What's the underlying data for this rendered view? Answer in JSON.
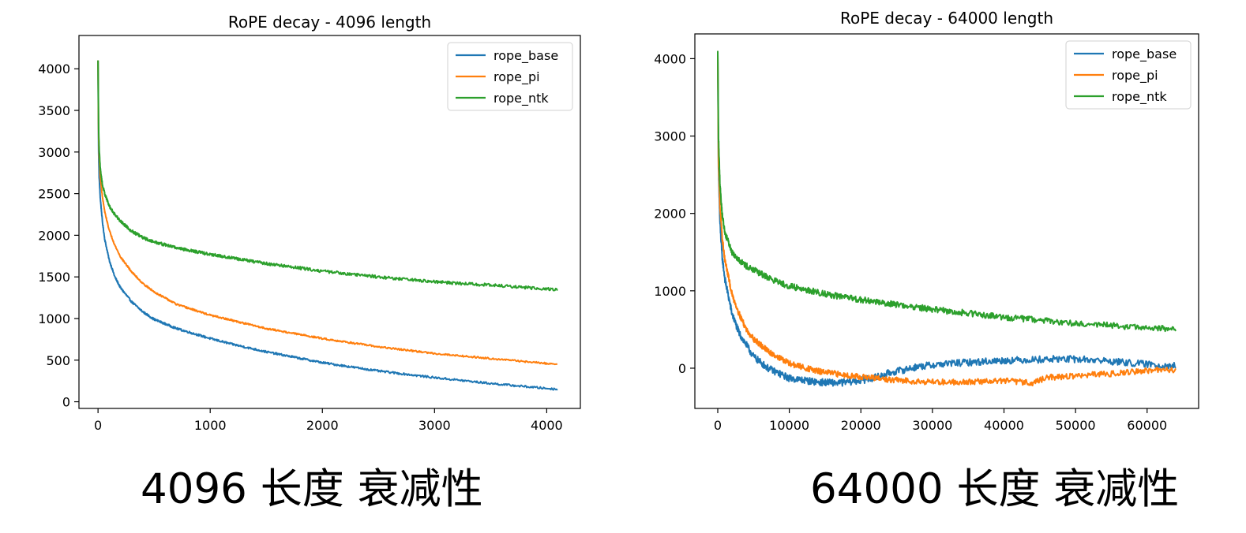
{
  "captions": [
    "4096 长度 衰减性",
    "64000 长度 衰减性"
  ],
  "chart_data": [
    {
      "type": "line",
      "title": "RoPE decay - 4096 length",
      "xlabel": "",
      "ylabel": "",
      "xlim": [
        -170,
        4300
      ],
      "ylim": [
        -80,
        4400
      ],
      "xticks": [
        0,
        1000,
        2000,
        3000,
        4000
      ],
      "yticks": [
        0,
        500,
        1000,
        1500,
        2000,
        2500,
        3000,
        3500,
        4000
      ],
      "grid": false,
      "legend_position": "top-right",
      "series": [
        {
          "name": "rope_base",
          "color": "#1f77b4",
          "x": [
            0,
            5,
            10,
            20,
            40,
            60,
            100,
            150,
            200,
            300,
            400,
            500,
            700,
            1000,
            1200,
            1500,
            2000,
            2500,
            3000,
            3500,
            4000,
            4095
          ],
          "y": [
            4100,
            3000,
            2700,
            2450,
            2150,
            1950,
            1700,
            1500,
            1370,
            1200,
            1080,
            990,
            880,
            760,
            690,
            600,
            470,
            370,
            290,
            220,
            160,
            150
          ],
          "noise": 12
        },
        {
          "name": "rope_pi",
          "color": "#ff7f0e",
          "x": [
            0,
            5,
            10,
            20,
            40,
            60,
            100,
            150,
            200,
            300,
            400,
            500,
            700,
            1000,
            1500,
            2000,
            2500,
            3000,
            3500,
            4000,
            4095
          ],
          "y": [
            4100,
            3200,
            2950,
            2700,
            2450,
            2280,
            2060,
            1880,
            1740,
            1560,
            1420,
            1320,
            1170,
            1040,
            880,
            760,
            660,
            580,
            520,
            460,
            450
          ],
          "noise": 10
        },
        {
          "name": "rope_ntk",
          "color": "#2ca02c",
          "x": [
            0,
            5,
            10,
            20,
            40,
            60,
            100,
            150,
            200,
            300,
            400,
            500,
            700,
            1000,
            1500,
            2000,
            2500,
            3000,
            3500,
            4000,
            4095
          ],
          "y": [
            4100,
            3300,
            3050,
            2800,
            2600,
            2500,
            2350,
            2250,
            2170,
            2050,
            1970,
            1920,
            1850,
            1770,
            1660,
            1570,
            1500,
            1440,
            1400,
            1355,
            1350
          ],
          "noise": 18
        }
      ]
    },
    {
      "type": "line",
      "title": "RoPE decay - 64000 length",
      "xlabel": "",
      "ylabel": "",
      "xlim": [
        -3200,
        67200
      ],
      "ylim": [
        -520,
        4320
      ],
      "xticks": [
        0,
        10000,
        20000,
        30000,
        40000,
        50000,
        60000
      ],
      "yticks": [
        0,
        1000,
        2000,
        3000,
        4000
      ],
      "grid": false,
      "legend_position": "top-right",
      "series": [
        {
          "name": "rope_base",
          "color": "#1f77b4",
          "x": [
            0,
            100,
            300,
            600,
            1000,
            2000,
            3000,
            4000,
            5000,
            7000,
            10000,
            14000,
            17000,
            20000,
            22000,
            24000,
            28000,
            32000,
            36000,
            40000,
            44000,
            48000,
            52000,
            56000,
            60000,
            64000
          ],
          "y": [
            4100,
            2600,
            1900,
            1450,
            1150,
            700,
            450,
            300,
            150,
            0,
            -130,
            -180,
            -190,
            -160,
            -120,
            -60,
            20,
            60,
            80,
            100,
            110,
            120,
            110,
            80,
            50,
            30
          ],
          "noise": 45
        },
        {
          "name": "rope_pi",
          "color": "#ff7f0e",
          "x": [
            0,
            100,
            300,
            600,
            1000,
            2000,
            3000,
            4000,
            5000,
            7000,
            10000,
            14000,
            17000,
            20000,
            24000,
            28000,
            32000,
            36000,
            40000,
            44000,
            46000,
            50000,
            55000,
            60000,
            64000
          ],
          "y": [
            4100,
            2700,
            2100,
            1700,
            1400,
            950,
            700,
            500,
            380,
            220,
            60,
            -40,
            -80,
            -110,
            -150,
            -170,
            -180,
            -175,
            -160,
            -190,
            -120,
            -100,
            -70,
            -30,
            -20
          ],
          "noise": 38
        },
        {
          "name": "rope_ntk",
          "color": "#2ca02c",
          "x": [
            0,
            100,
            300,
            600,
            1000,
            2000,
            3000,
            4000,
            6000,
            8000,
            10000,
            14000,
            18000,
            22000,
            26000,
            30000,
            35000,
            40000,
            45000,
            50000,
            55000,
            60000,
            64000
          ],
          "y": [
            4100,
            3000,
            2400,
            2000,
            1750,
            1500,
            1400,
            1320,
            1220,
            1130,
            1060,
            980,
            910,
            860,
            810,
            760,
            710,
            660,
            620,
            580,
            550,
            520,
            500
          ],
          "noise": 40
        }
      ]
    }
  ]
}
